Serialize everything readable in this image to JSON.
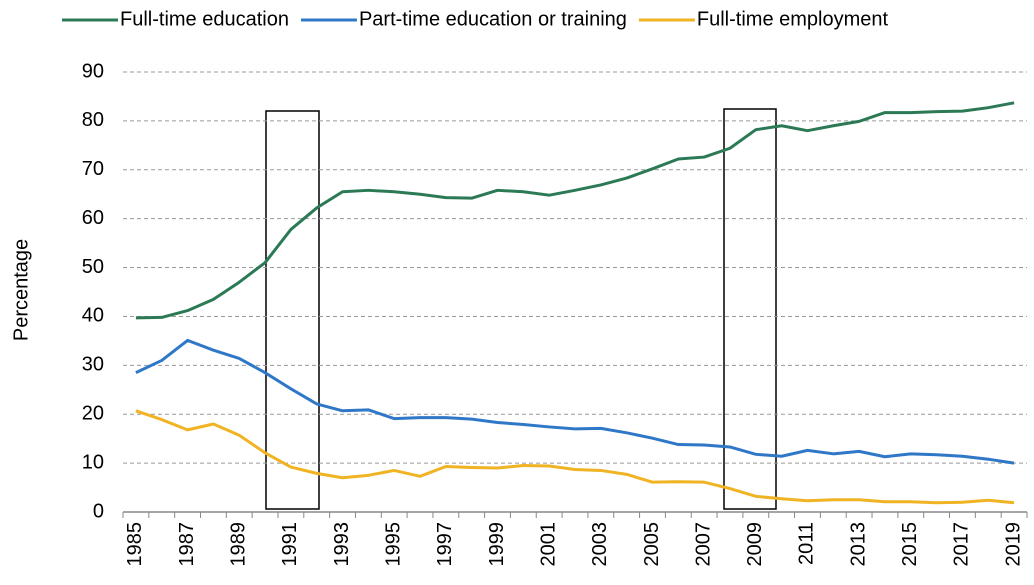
{
  "chart_data": {
    "type": "line",
    "y_label": "Percentage",
    "categories": [
      "1985",
      null,
      "1987",
      null,
      "1989",
      null,
      "1991",
      null,
      "1993",
      null,
      "1995",
      null,
      "1997",
      null,
      "1999",
      null,
      "2001",
      null,
      "2003",
      null,
      "2005",
      null,
      "2007",
      null,
      "2009",
      null,
      "2011",
      null,
      "2013",
      null,
      "2015",
      null,
      "2017",
      null,
      "2019"
    ],
    "series": [
      {
        "name": "Full-time education",
        "color": "#2b7a55",
        "values": [
          39.7,
          39.8,
          41.2,
          43.5,
          47,
          51,
          57.8,
          62.2,
          65.5,
          65.8,
          65.5,
          65,
          64.3,
          64.2,
          65.8,
          65.5,
          64.8,
          65.8,
          66.9,
          68.3,
          70.2,
          72.2,
          72.6,
          74.4,
          78.2,
          79,
          78,
          79,
          79.9,
          81.7,
          81.7,
          81.9,
          82,
          82.7,
          83.7
        ]
      },
      {
        "name": "Part-time education or training",
        "color": "#2f78c8",
        "values": [
          28.5,
          31,
          35.1,
          33.1,
          31.4,
          28.5,
          25.2,
          22.1,
          20.7,
          20.9,
          19.1,
          19.3,
          19.3,
          19,
          18.3,
          17.9,
          17.4,
          17,
          17.1,
          16.2,
          15.1,
          13.8,
          13.7,
          13.3,
          11.8,
          11.4,
          12.6,
          11.9,
          12.4,
          11.3,
          11.9,
          11.7,
          11.4,
          10.8,
          10
        ]
      },
      {
        "name": "Full-time employment",
        "color": "#f0b323",
        "values": [
          20.7,
          18.9,
          16.8,
          18,
          15.7,
          12.1,
          9.2,
          7.9,
          7,
          7.5,
          8.5,
          7.3,
          9.3,
          9.1,
          9,
          9.5,
          9.4,
          8.7,
          8.5,
          7.7,
          6.1,
          6.2,
          6.1,
          4.8,
          3.2,
          2.7,
          2.3,
          2.5,
          2.5,
          2.1,
          2.1,
          1.9,
          2,
          2.4,
          1.9
        ]
      }
    ],
    "ylim": [
      0,
      90
    ],
    "yticks": [
      0,
      10,
      20,
      30,
      40,
      50,
      60,
      70,
      80,
      90
    ],
    "grid": true,
    "legend": "top"
  }
}
